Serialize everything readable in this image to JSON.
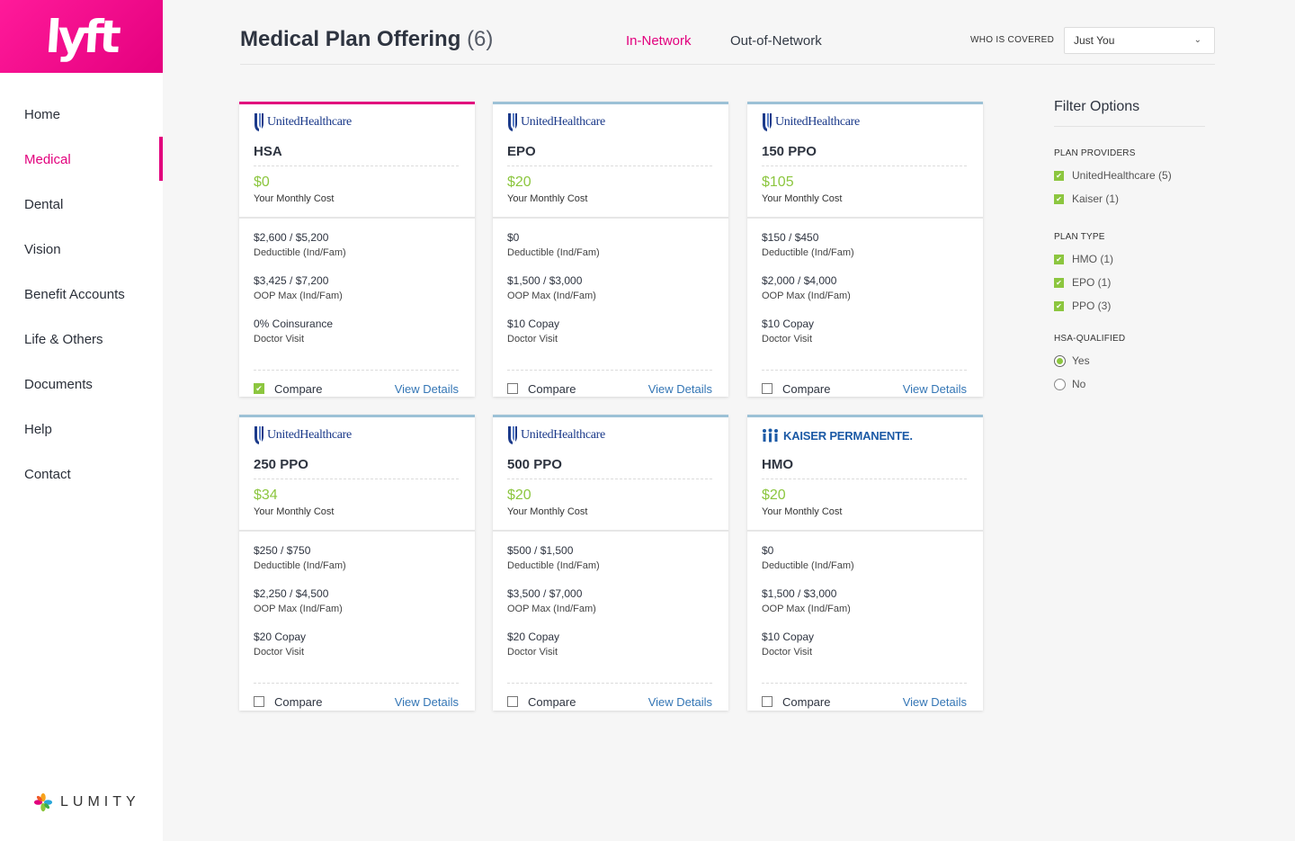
{
  "sidebar": {
    "logo": "lyft",
    "items": [
      {
        "label": "Home"
      },
      {
        "label": "Medical",
        "active": true
      },
      {
        "label": "Dental"
      },
      {
        "label": "Vision"
      },
      {
        "label": "Benefit Accounts"
      },
      {
        "label": "Life & Others"
      },
      {
        "label": "Documents"
      },
      {
        "label": "Help"
      },
      {
        "label": "Contact"
      }
    ],
    "brand": "LUMITY"
  },
  "header": {
    "title": "Medical Plan Offering",
    "count": "(6)",
    "tabs": {
      "in_network": "In-Network",
      "out_network": "Out-of-Network"
    },
    "covered_label": "WHO IS COVERED",
    "covered_value": "Just You"
  },
  "colors": {
    "accent": "#e2007d",
    "price": "#8cc63f",
    "link": "#3476b5"
  },
  "plans": [
    {
      "provider": "UnitedHealthcare",
      "name": "HSA",
      "price": "$0",
      "price_label": "Your Monthly Cost",
      "deductible": "$2,600 / $5,200",
      "deductible_label": "Deductible (Ind/Fam)",
      "oop": "$3,425 / $7,200",
      "oop_label": "OOP Max (Ind/Fam)",
      "visit": "0% Coinsurance",
      "visit_label": "Doctor Visit",
      "compare": "Compare",
      "compare_checked": true,
      "details": "View Details"
    },
    {
      "provider": "UnitedHealthcare",
      "name": "EPO",
      "price": "$20",
      "price_label": "Your Monthly Cost",
      "deductible": "$0",
      "deductible_label": "Deductible (Ind/Fam)",
      "oop": "$1,500 / $3,000",
      "oop_label": "OOP Max (Ind/Fam)",
      "visit": "$10 Copay",
      "visit_label": "Doctor Visit",
      "compare": "Compare",
      "compare_checked": false,
      "details": "View Details"
    },
    {
      "provider": "UnitedHealthcare",
      "name": "150 PPO",
      "price": "$105",
      "price_label": "Your Monthly Cost",
      "deductible": "$150 / $450",
      "deductible_label": "Deductible (Ind/Fam)",
      "oop": "$2,000 / $4,000",
      "oop_label": "OOP Max (Ind/Fam)",
      "visit": "$10 Copay",
      "visit_label": "Doctor Visit",
      "compare": "Compare",
      "compare_checked": false,
      "details": "View Details"
    },
    {
      "provider": "UnitedHealthcare",
      "name": "250 PPO",
      "price": "$34",
      "price_label": "Your Monthly Cost",
      "deductible": "$250 / $750",
      "deductible_label": "Deductible (Ind/Fam)",
      "oop": "$2,250 / $4,500",
      "oop_label": "OOP Max (Ind/Fam)",
      "visit": "$20 Copay",
      "visit_label": "Doctor Visit",
      "compare": "Compare",
      "compare_checked": false,
      "details": "View Details"
    },
    {
      "provider": "UnitedHealthcare",
      "name": "500 PPO",
      "price": "$20",
      "price_label": "Your Monthly Cost",
      "deductible": "$500 / $1,500",
      "deductible_label": "Deductible (Ind/Fam)",
      "oop": "$3,500 / $7,000",
      "oop_label": "OOP Max (Ind/Fam)",
      "visit": "$20 Copay",
      "visit_label": "Doctor Visit",
      "compare": "Compare",
      "compare_checked": false,
      "details": "View Details"
    },
    {
      "provider": "KAISER PERMANENTE.",
      "name": "HMO",
      "price": "$20",
      "price_label": "Your Monthly Cost",
      "deductible": "$0",
      "deductible_label": "Deductible (Ind/Fam)",
      "oop": "$1,500 / $3,000",
      "oop_label": "OOP Max (Ind/Fam)",
      "visit": "$10 Copay",
      "visit_label": "Doctor Visit",
      "compare": "Compare",
      "compare_checked": false,
      "details": "View Details"
    }
  ],
  "filters": {
    "title": "Filter Options",
    "providers_title": "PLAN PROVIDERS",
    "providers": [
      {
        "label": "UnitedHealthcare (5)",
        "checked": true
      },
      {
        "label": "Kaiser (1)",
        "checked": true
      }
    ],
    "type_title": "PLAN TYPE",
    "types": [
      {
        "label": "HMO (1)",
        "checked": true
      },
      {
        "label": "EPO (1)",
        "checked": true
      },
      {
        "label": "PPO (3)",
        "checked": true
      }
    ],
    "hsa_title": "HSA-QUALIFIED",
    "hsa": [
      {
        "label": "Yes",
        "selected": true
      },
      {
        "label": "No",
        "selected": false
      }
    ]
  }
}
